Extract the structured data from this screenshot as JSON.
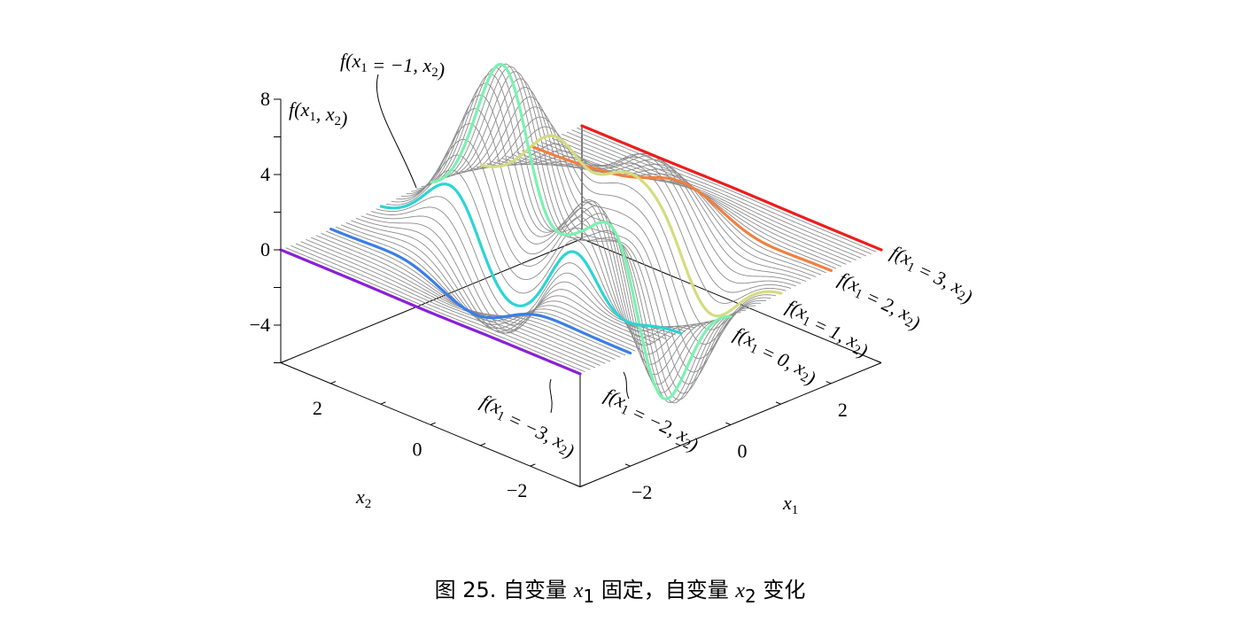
{
  "caption": {
    "prefix": "图 25. 自变量 ",
    "var1": "x",
    "sub1": "1",
    "middle": " 固定，自变量 ",
    "var2": "x",
    "sub2": "2",
    "suffix": " 变化"
  },
  "chart_data": {
    "type": "surface-mesh",
    "title": "",
    "function_axis_label": "f(x1, x2)",
    "axes": {
      "x1": {
        "label": "x1",
        "range": [
          -3,
          3
        ],
        "ticks": [
          -2,
          0,
          2
        ],
        "tick_labels": [
          "−2",
          "0",
          "2"
        ]
      },
      "x2": {
        "label": "x2",
        "range": [
          -3,
          3
        ],
        "ticks": [
          -2,
          0,
          2
        ],
        "tick_labels": [
          "−2",
          "0",
          "2"
        ]
      },
      "z": {
        "label": "f(x1, x2)",
        "range": [
          -6,
          8
        ],
        "ticks": [
          -4,
          0,
          4,
          8
        ],
        "tick_labels": [
          "−4",
          "0",
          "4",
          "8"
        ]
      }
    },
    "mesh": {
      "x1_slices": 61,
      "color": "#8c8c8c"
    },
    "highlighted_slices": [
      {
        "x1": -3,
        "label": "f(x1 = −3, x2)",
        "color": "#8a1fd8"
      },
      {
        "x1": -2,
        "label": "f(x1 = −2, x2)",
        "color": "#3a7ee8"
      },
      {
        "x1": -1,
        "label": "f(x1 = −1, x2)",
        "color": "#2cd4d4"
      },
      {
        "x1": 0,
        "label": "f(x1 = 0, x2)",
        "color": "#7af2b0"
      },
      {
        "x1": 1,
        "label": "f(x1 = 1, x2)",
        "color": "#d4dc80"
      },
      {
        "x1": 2,
        "label": "f(x1 = 2, x2)",
        "color": "#f08040"
      },
      {
        "x1": 3,
        "label": "f(x1 = 3, x2)",
        "color": "#ee1c1c"
      }
    ]
  }
}
